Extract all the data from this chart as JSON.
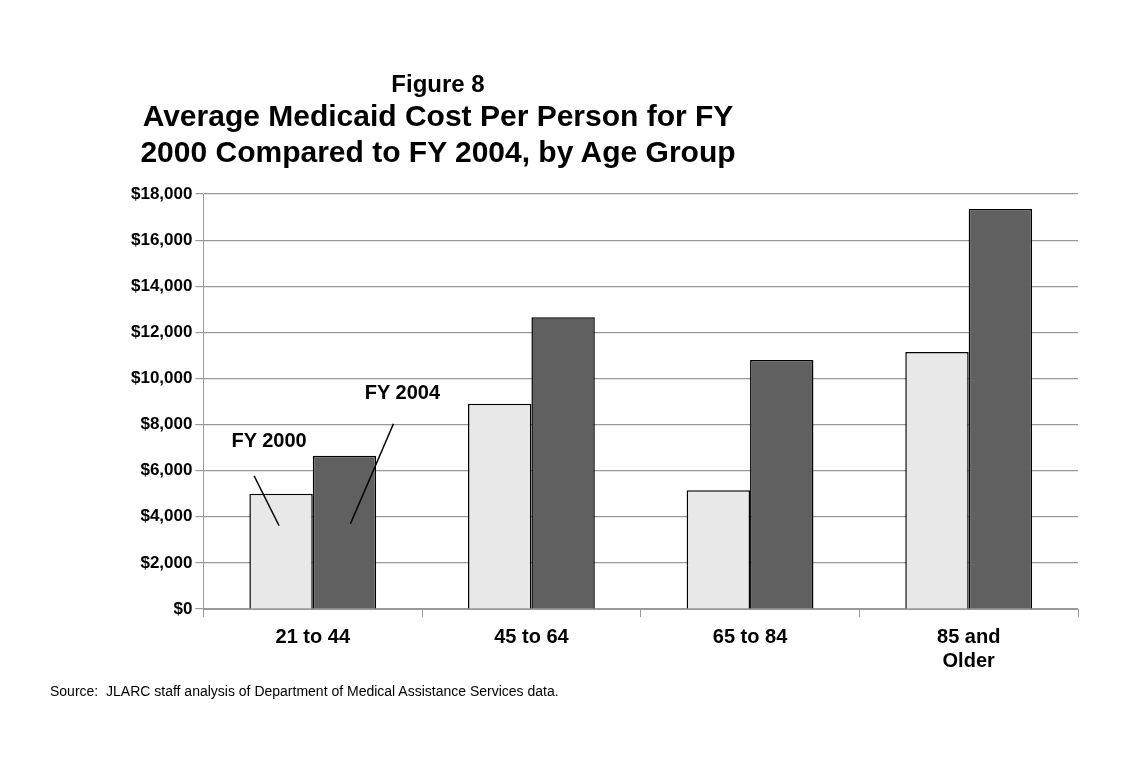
{
  "chart_data": {
    "type": "bar",
    "title": "Figure 8",
    "subtitle": "Average Medicaid Cost Per Person for FY 2000 Compared to FY 2004, by Age Group",
    "categories": [
      "21 to 44",
      "45 to 64",
      "65 to 84",
      "85 and Older"
    ],
    "series": [
      {
        "name": "FY 2000",
        "color": "#e8e8e8",
        "values": [
          5000,
          8900,
          5150,
          11150
        ]
      },
      {
        "name": "FY 2004",
        "color": "#606060",
        "values": [
          6650,
          12650,
          10800,
          17350
        ]
      }
    ],
    "ylim": [
      0,
      18000
    ],
    "yticks": [
      {
        "value": 0,
        "label": "$0"
      },
      {
        "value": 2000,
        "label": "$2,000"
      },
      {
        "value": 4000,
        "label": "$4,000"
      },
      {
        "value": 6000,
        "label": "$6,000"
      },
      {
        "value": 8000,
        "label": "$8,000"
      },
      {
        "value": 10000,
        "label": "$10,000"
      },
      {
        "value": 12000,
        "label": "$12,000"
      },
      {
        "value": 14000,
        "label": "$14,000"
      },
      {
        "value": 16000,
        "label": "$16,000"
      },
      {
        "value": 18000,
        "label": "$18,000"
      }
    ],
    "grid": "y",
    "legend": false,
    "annotations": [
      "Source:  JLARC staff analysis of Department of Medical Assistance Services data."
    ]
  }
}
